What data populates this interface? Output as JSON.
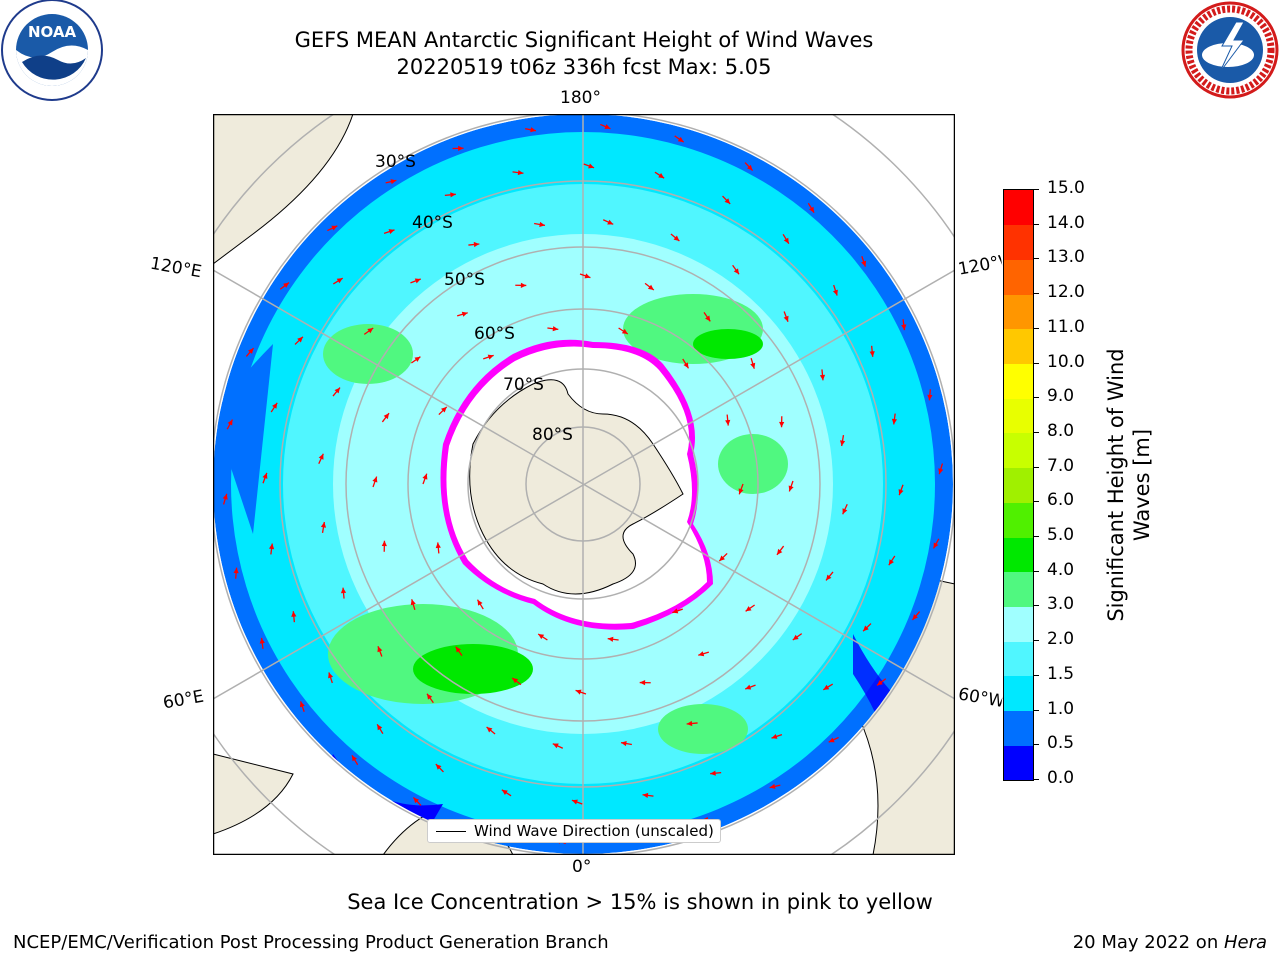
{
  "title": {
    "line1": "GEFS MEAN Antarctic Significant Height of Wind Waves",
    "line2": "20220519 t06z 336h fcst   Max: 5.05"
  },
  "logos": {
    "noaa_text": "NOAA",
    "noaa_ring": "NATIONAL OCEANIC AND ATMOSPHERIC ADMINISTRATION · U.S. DEPARTMENT OF COMMERCE",
    "nws_ring": "NATIONAL WEATHER SERVICE"
  },
  "map": {
    "projection": "south-polar-stereographic",
    "lon_labels": {
      "top": "180°",
      "bottom": "0°",
      "left_upper": "120°E",
      "left_lower": "60°E",
      "right_upper": "120°W",
      "right_lower": "60°W"
    },
    "lat_labels": [
      "30°S",
      "40°S",
      "50°S",
      "60°S",
      "70°S",
      "80°S"
    ],
    "legend_label": "Wind Wave Direction (unscaled)",
    "arrow_color": "#ff0000",
    "land_color": "#efebdc",
    "ice_edge_colors": [
      "#ff00ff",
      "#ffff00"
    ]
  },
  "colorbar": {
    "label": "Significant Height of Wind Waves [m]",
    "ticks": [
      "0.0",
      "0.5",
      "1.0",
      "1.5",
      "2.0",
      "3.0",
      "4.0",
      "5.0",
      "6.0",
      "7.0",
      "8.0",
      "9.0",
      "10.0",
      "11.0",
      "12.0",
      "13.0",
      "14.0",
      "15.0"
    ],
    "colors": [
      "#0000ff",
      "#0070ff",
      "#00e8ff",
      "#50f6ff",
      "#a0ffff",
      "#50f880",
      "#00e800",
      "#50f000",
      "#a0f000",
      "#c8ff00",
      "#e8ff00",
      "#ffff00",
      "#ffc800",
      "#ff9600",
      "#ff6400",
      "#ff3200",
      "#ff0000"
    ]
  },
  "footer": {
    "note": "Sea Ice Concentration > 15% is shown in pink to yellow",
    "credit": "NCEP/EMC/Verification Post Processing Product Generation Branch",
    "date": "20 May 2022 on ",
    "machine": "Hera"
  }
}
